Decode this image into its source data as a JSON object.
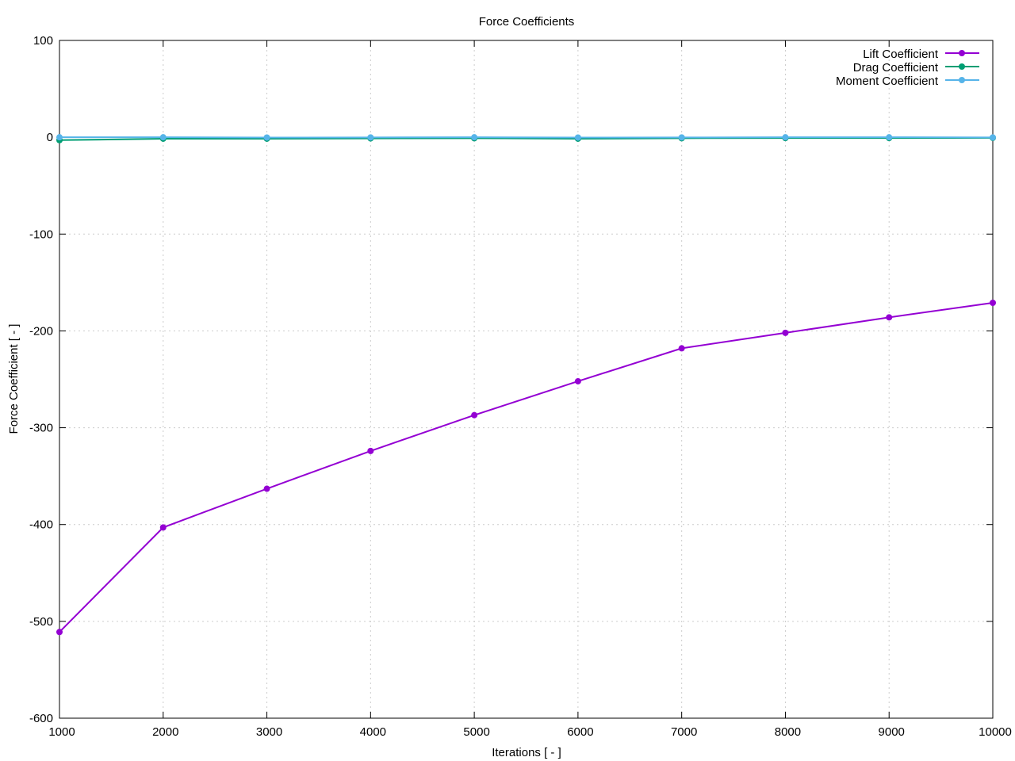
{
  "chart_data": {
    "type": "line",
    "title": "Force Coefficients",
    "xlabel": "Iterations [ - ]",
    "ylabel": "Force Coefficient [ - ]",
    "xlim": [
      1000,
      10000
    ],
    "ylim": [
      -600,
      100
    ],
    "x_ticks": [
      "1000",
      "2000",
      "3000",
      "4000",
      "5000",
      "6000",
      "7000",
      "8000",
      "9000",
      "10000"
    ],
    "y_ticks": [
      "100",
      "0",
      "-100",
      "-200",
      "-300",
      "-400",
      "-500",
      "-600"
    ],
    "grid": true,
    "legend_position": "top-right",
    "x": [
      1000,
      2000,
      3000,
      4000,
      5000,
      6000,
      7000,
      8000,
      9000,
      10000
    ],
    "series": [
      {
        "name": "Lift Coefficient",
        "color": "#9400d3",
        "values": [
          -511,
          -403,
          -363,
          -324,
          -287,
          -252,
          -218,
          -202,
          -186,
          -171
        ]
      },
      {
        "name": "Drag Coefficient",
        "color": "#009e73",
        "values": [
          -3,
          -1.5,
          -1.5,
          -1.2,
          -1,
          -1.5,
          -1,
          -0.8,
          -0.8,
          -0.6
        ]
      },
      {
        "name": "Moment Coefficient",
        "color": "#56b4e9",
        "values": [
          0,
          0,
          -0.3,
          -0.2,
          0,
          -0.3,
          -0.2,
          0,
          0,
          -0.2
        ]
      }
    ]
  }
}
